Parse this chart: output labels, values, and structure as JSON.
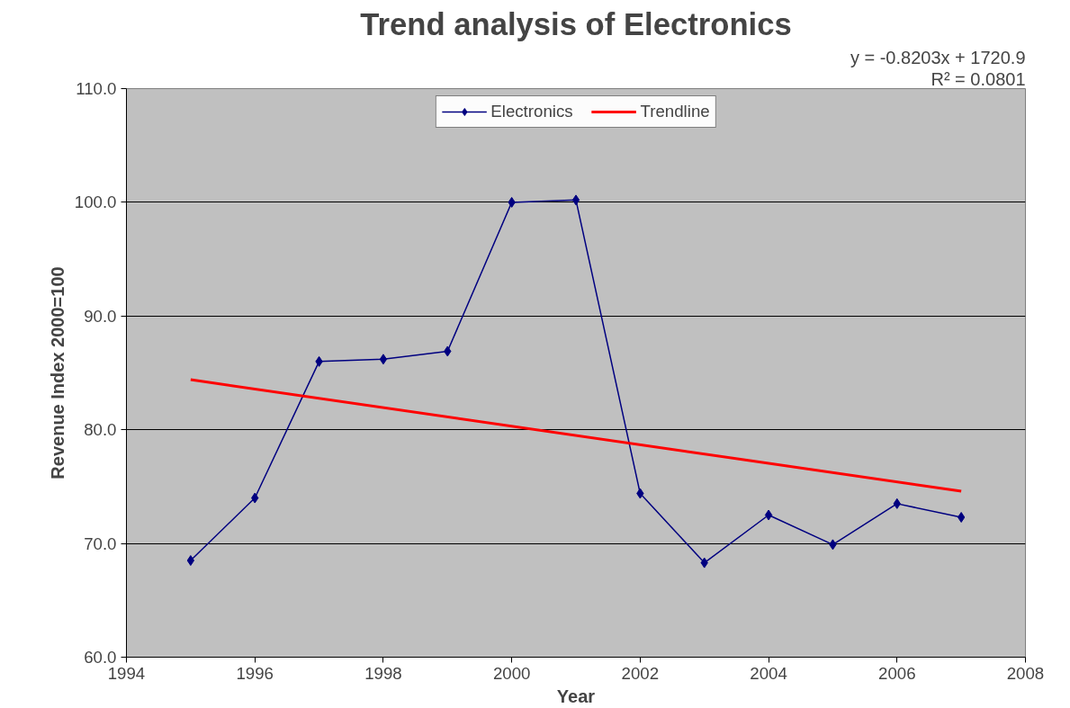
{
  "chart_data": {
    "type": "line",
    "title": "Trend analysis of Electronics",
    "xlabel": "Year",
    "ylabel": "Revenue Index 2000=100",
    "annotations": [
      "y = -0.8203x + 1720.9",
      "R² = 0.0801"
    ],
    "x": [
      1995,
      1996,
      1997,
      1998,
      1999,
      2000,
      2001,
      2002,
      2003,
      2004,
      2005,
      2006,
      2007
    ],
    "series": [
      {
        "name": "Electronics",
        "color": "#000080",
        "marker": "diamond",
        "values": [
          68.5,
          74.0,
          86.0,
          86.2,
          86.9,
          100.0,
          100.2,
          74.4,
          68.3,
          72.5,
          69.9,
          73.5,
          72.3
        ]
      },
      {
        "name": "Trendline",
        "color": "#ff0000",
        "marker": "none",
        "x": [
          1995,
          2007
        ],
        "values": [
          84.4,
          74.6
        ]
      }
    ],
    "xlim": [
      1994,
      2008
    ],
    "xticks": [
      1994,
      1996,
      1998,
      2000,
      2002,
      2004,
      2006,
      2008
    ],
    "ylim": [
      60,
      110
    ],
    "yticks": [
      {
        "value": 60,
        "label": "60.0"
      },
      {
        "value": 70,
        "label": "70.0"
      },
      {
        "value": 80,
        "label": "80.0"
      },
      {
        "value": 90,
        "label": "90.0"
      },
      {
        "value": 100,
        "label": "100.0"
      },
      {
        "value": 110,
        "label": "110.0"
      }
    ],
    "grid": "y",
    "legend": "top"
  }
}
